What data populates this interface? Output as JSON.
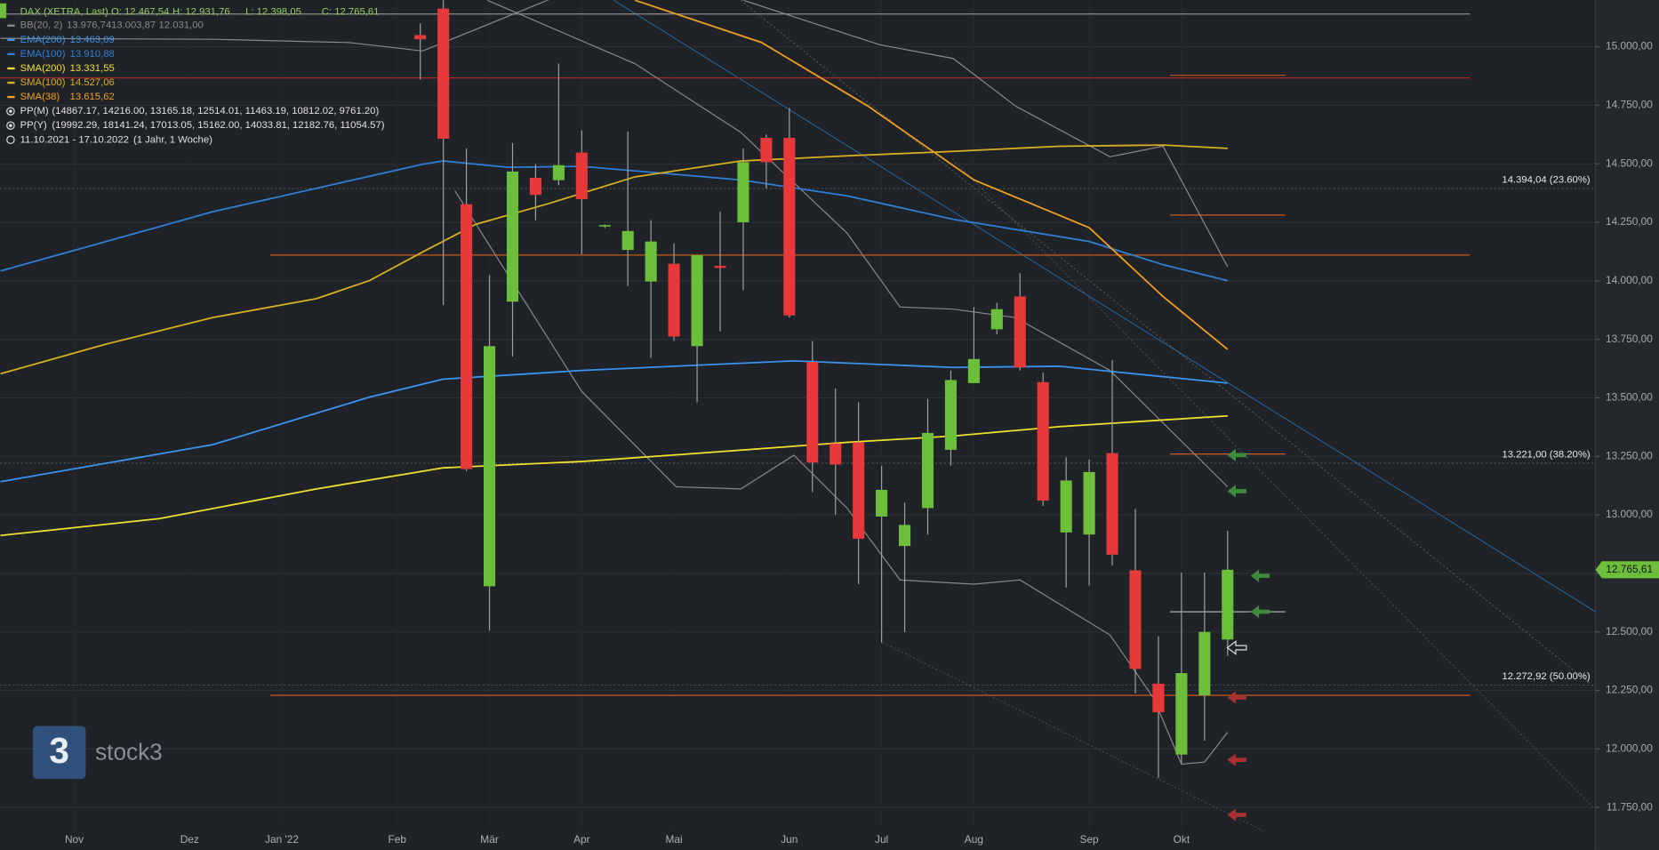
{
  "header": {
    "instrument": "DAX (XETRA, Last)",
    "ohlc": [
      "O: 12.467,54",
      "H: 12.931,76",
      "L: 12.398,05",
      "C: 12.765,61"
    ],
    "pivots": [
      {
        "name": "PP(M)",
        "text": "(14867.17, 14216.00, 13165.18, 12514.01, 11463.19, 10812.02, 9761.20)"
      },
      {
        "name": "PP(Y)",
        "text": "(19992.29, 18141.24, 17013.05, 15162.00, 14033.81, 12182.76, 11054.57)"
      }
    ],
    "range": {
      "dates": "11.10.2021 - 17.10.2022",
      "span": "(1 Jahr, 1 Woche)"
    }
  },
  "logo": {
    "mark": "3",
    "name": "stock3"
  },
  "chart_data": {
    "type": "candlestick",
    "up_color": "#6cbf3a",
    "down_color": "#e8393a",
    "grid": true,
    "x": [
      18,
      19,
      20,
      21,
      22,
      23,
      24,
      25,
      26,
      27,
      28,
      29,
      30,
      31,
      32,
      33,
      34,
      35,
      36,
      37,
      38,
      39,
      40,
      41,
      42,
      43,
      44,
      45,
      46,
      47,
      48,
      49,
      50,
      51,
      52,
      53
    ],
    "open": [
      15050,
      15163,
      14327,
      12695,
      13911,
      14440,
      14430,
      14548,
      14232,
      14132,
      13997,
      14073,
      13721,
      14064,
      14250,
      14611,
      14611,
      13653,
      13305,
      13310,
      12993,
      12867,
      13029,
      13278,
      13563,
      13793,
      13933,
      13567,
      12925,
      12916,
      13264,
      12763,
      12279,
      11976,
      12229,
      12467.54
    ],
    "high": [
      15100,
      15250,
      14566,
      14024,
      14589,
      14498,
      14928,
      14643,
      14240,
      14638,
      14259,
      14159,
      14110,
      14295,
      14566,
      14625,
      14738,
      13743,
      13540,
      13481,
      13210,
      13052,
      13495,
      13617,
      13888,
      13906,
      14033,
      13608,
      13246,
      13237,
      13662,
      13025,
      12482,
      12754,
      12754,
      12931.76
    ],
    "low": [
      14860,
      13897,
      13187,
      12505,
      13676,
      14259,
      14408,
      14114,
      14225,
      13978,
      13671,
      13743,
      13481,
      13784,
      13960,
      14394,
      13843,
      13097,
      13000,
      12704,
      12455,
      12500,
      12916,
      13210,
      13563,
      13771,
      13617,
      13038,
      12690,
      12699,
      12785,
      12238,
      11877,
      11940,
      12035,
      12398.05
    ],
    "close": [
      15032,
      14607,
      13196,
      13721,
      14467,
      14367,
      14494,
      14349,
      14238,
      14213,
      14168,
      13762,
      14110,
      14055,
      14507,
      14507,
      13852,
      13224,
      13215,
      12898,
      13107,
      12957,
      13350,
      13576,
      13666,
      13879,
      13630,
      13061,
      13147,
      13183,
      12830,
      12342,
      12157,
      12324,
      12500,
      12765.61
    ],
    "xlim": [
      -0.22,
      68.95
    ],
    "xticks": [
      {
        "value": 3,
        "label": "Nov"
      },
      {
        "value": 8,
        "label": "Dez"
      },
      {
        "value": 12,
        "label": "Jan '22"
      },
      {
        "value": 17,
        "label": "Feb"
      },
      {
        "value": 21,
        "label": "Mär"
      },
      {
        "value": 25,
        "label": "Apr"
      },
      {
        "value": 29,
        "label": "Mai"
      },
      {
        "value": 34,
        "label": "Jun"
      },
      {
        "value": 38,
        "label": "Jul"
      },
      {
        "value": 42,
        "label": "Aug"
      },
      {
        "value": 47,
        "label": "Sep"
      },
      {
        "value": 51,
        "label": "Okt"
      }
    ],
    "ylim": [
      11569,
      15199
    ],
    "yticks": [
      {
        "value": 11750,
        "label": "11.750,00"
      },
      {
        "value": 12000,
        "label": "12.000,00"
      },
      {
        "value": 12250,
        "label": "12.250,00"
      },
      {
        "value": 12500,
        "label": "12.500,00"
      },
      {
        "value": 12750,
        "label": "12.750,00"
      },
      {
        "value": 13000,
        "label": "13.000,00"
      },
      {
        "value": 13250,
        "label": "13.250,00"
      },
      {
        "value": 13500,
        "label": "13.500,00"
      },
      {
        "value": 13750,
        "label": "13.750,00"
      },
      {
        "value": 14000,
        "label": "14.000,00"
      },
      {
        "value": 14250,
        "label": "14.250,00"
      },
      {
        "value": 14500,
        "label": "14.500,00"
      },
      {
        "value": 14750,
        "label": "14.750,00"
      },
      {
        "value": 15000,
        "label": "15.000,00"
      }
    ],
    "bands": {
      "name": "BB(20, 2)",
      "color": "#8a8a8a",
      "value_labels": [
        "13.976,74",
        "13.003,87",
        "12.031,00"
      ],
      "upper": {
        "x": [
          -0.2,
          9.0,
          14.9,
          18.1,
          27.3,
          37.9,
          41.1,
          43.8,
          47.9,
          50.2,
          53.0
        ],
        "values": [
          15036,
          15032,
          15018,
          14982,
          15350,
          15009,
          14950,
          14747,
          14530,
          14575,
          14060
        ]
      },
      "middle": {
        "x": [
          20.9,
          27.3,
          31.9,
          36.5,
          38.8,
          41.1,
          43.8,
          47.9,
          53.0
        ],
        "values": [
          15199,
          14928,
          14634,
          14204,
          13888,
          13879,
          13843,
          13617,
          13120
        ]
      },
      "lower": {
        "x": [
          19.5,
          25.0,
          29.1,
          31.9,
          34.2,
          36.5,
          38.8,
          42.0,
          44.0,
          47.9,
          49.8,
          51.0,
          52.0,
          53.0
        ],
        "values": [
          14385,
          13527,
          13120,
          13111,
          13255,
          13029,
          12722,
          12704,
          12722,
          12487,
          12216,
          11935,
          11944,
          12071
        ]
      }
    },
    "series": [
      {
        "name": "EMA(200)",
        "value_label": "13.463,09",
        "color": "#3a94f0",
        "x": [
          -0.2,
          9.0,
          15.8,
          19.0,
          25.0,
          34.2,
          41.1,
          45.7,
          53.0
        ],
        "values": [
          13142,
          13300,
          13503,
          13580,
          13617,
          13658,
          13630,
          13635,
          13563
        ]
      },
      {
        "name": "EMA(100)",
        "value_label": "13.910,88",
        "color": "#2f7fd8",
        "x": [
          -0.2,
          9.0,
          18.1,
          19.0,
          21.8,
          25.0,
          31.9,
          36.5,
          41.1,
          47.0,
          50.2,
          53.0
        ],
        "values": [
          14042,
          14295,
          14498,
          14512,
          14485,
          14489,
          14431,
          14363,
          14263,
          14168,
          14069,
          14001
        ]
      },
      {
        "name": "SMA(200)",
        "value_label": "13.331,55",
        "color": "#f2e030",
        "x": [
          -0.2,
          6.7,
          13.5,
          19.0,
          25.0,
          29.6,
          36.5,
          41.1,
          45.7,
          53.0
        ],
        "values": [
          12912,
          12984,
          13111,
          13201,
          13228,
          13260,
          13310,
          13337,
          13377,
          13423
        ]
      },
      {
        "name": "SMA(100)",
        "value_label": "14.527,06",
        "color": "#d8b020",
        "x": [
          -0.2,
          4.4,
          9.0,
          13.5,
          15.8,
          18.1,
          20.4,
          23.6,
          27.3,
          31.9,
          36.5,
          41.1,
          45.7,
          50.2,
          53.0
        ],
        "values": [
          13603,
          13730,
          13843,
          13924,
          14001,
          14123,
          14241,
          14331,
          14444,
          14512,
          14534,
          14553,
          14575,
          14580,
          14566
        ]
      },
      {
        "name": "SMA(38)",
        "value_label": "13.615,62",
        "color": "#f0a020",
        "x": [
          27.3,
          32.8,
          37.4,
          42.0,
          47.0,
          50.2,
          53.0
        ],
        "values": [
          15199,
          15018,
          14747,
          14431,
          14227,
          13933,
          13707
        ]
      }
    ],
    "levels": [
      {
        "value": 15140,
        "color": "#8c8c8c",
        "x": [
          -0.22,
          63.5
        ]
      },
      {
        "value": 14867,
        "color": "#a82828",
        "x": [
          -0.22,
          63.5
        ]
      },
      {
        "value": 14110,
        "color": "#c85a18",
        "x": [
          11.5,
          63.5
        ]
      },
      {
        "value": 12229,
        "color": "#e0601a",
        "x": [
          11.5,
          63.5
        ]
      },
      {
        "value": 14878,
        "color": "#c85a18",
        "x": [
          50.5,
          55.5
        ]
      },
      {
        "value": 14281,
        "color": "#c85a18",
        "x": [
          50.5,
          55.5
        ]
      },
      {
        "value": 13260,
        "color": "#c85a18",
        "x": [
          50.5,
          55.5
        ]
      },
      {
        "value": 12586,
        "color": "#bbbbbb",
        "x": [
          50.5,
          55.5
        ]
      }
    ],
    "fib_levels": [
      {
        "value": 14394.04,
        "label": "14.394,04 (23.60%)"
      },
      {
        "value": 13221,
        "label": "13.221,00 (38.20%)"
      },
      {
        "value": 12272.92,
        "label": "12.272,92 (50.00%)"
      }
    ],
    "last_price": {
      "value": 12765.61,
      "label": "12.765,61"
    }
  }
}
